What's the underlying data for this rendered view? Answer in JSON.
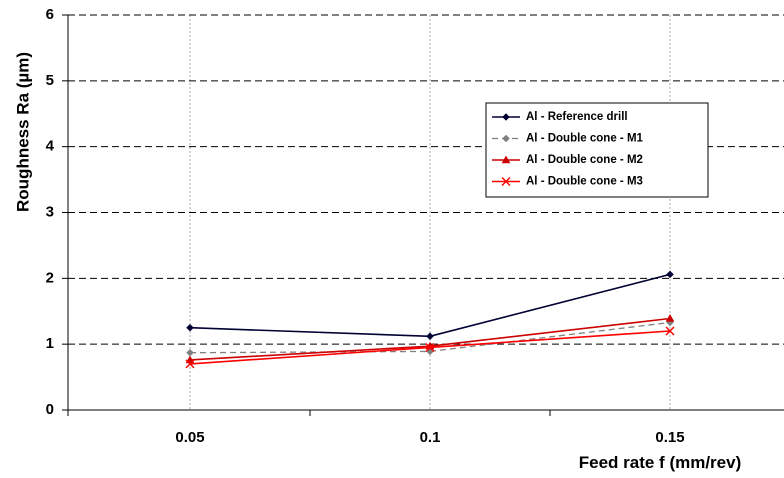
{
  "chart_data": {
    "type": "line",
    "title": "",
    "xlabel": "Feed rate f (mm/rev)",
    "ylabel": "Roughness Ra (µm)",
    "categories": [
      "0.05",
      "0.1",
      "0.15"
    ],
    "ylim": [
      0,
      6
    ],
    "yticks": [
      "0",
      "1",
      "2",
      "3",
      "4",
      "5",
      "6"
    ],
    "grid": true,
    "legend_position": "right",
    "series": [
      {
        "name": "Al - Reference drill",
        "values": [
          1.25,
          1.12,
          2.06
        ],
        "color": "#000033",
        "marker": "diamond",
        "dash": "solid"
      },
      {
        "name": "Al - Double cone - M1",
        "values": [
          0.87,
          0.89,
          1.33
        ],
        "color": "#808080",
        "marker": "diamond",
        "dash": "dashed"
      },
      {
        "name": "Al - Double cone - M2",
        "values": [
          0.76,
          0.97,
          1.39
        ],
        "color": "#cc0000",
        "marker": "triangle",
        "dash": "solid"
      },
      {
        "name": "Al - Double cone - M3",
        "values": [
          0.7,
          0.95,
          1.2
        ],
        "color": "#ff0000",
        "marker": "x",
        "dash": "solid"
      }
    ]
  }
}
